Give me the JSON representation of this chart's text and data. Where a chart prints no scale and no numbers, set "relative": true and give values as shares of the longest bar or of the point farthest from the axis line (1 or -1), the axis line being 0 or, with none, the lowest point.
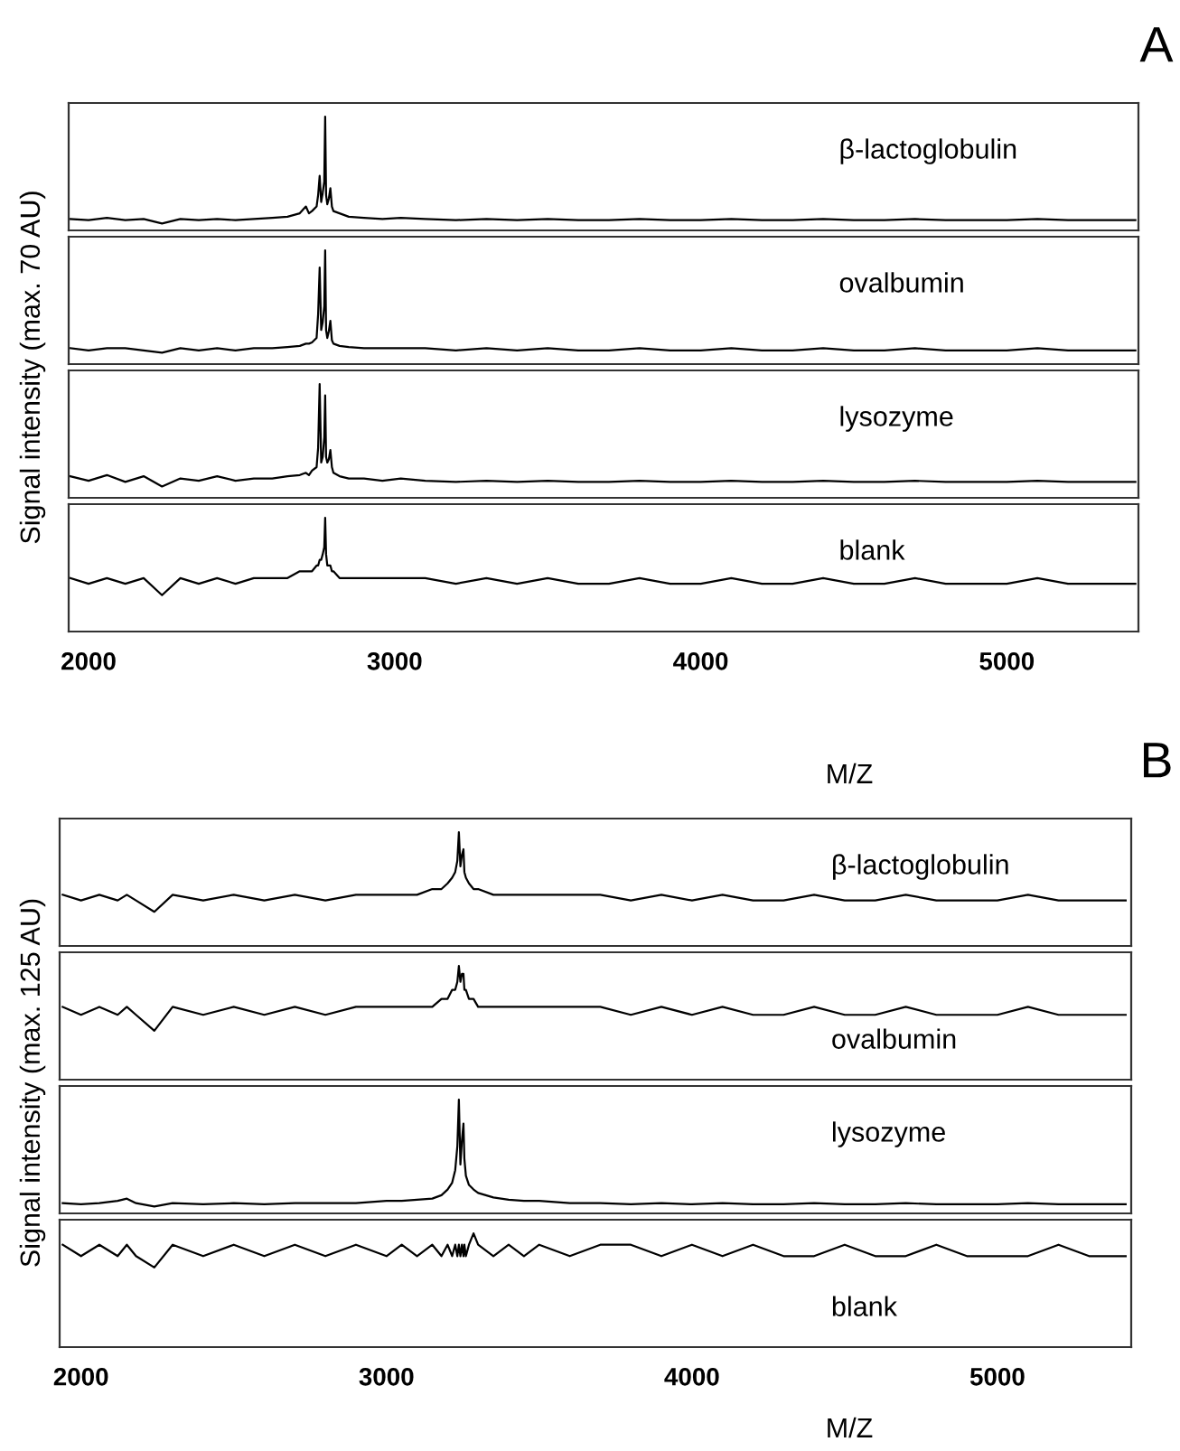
{
  "chart_data": [
    {
      "type": "line",
      "title": "A",
      "ylabel": "Signal intensity (max. 70 AU)",
      "relative": true,
      "xlim": [
        1935,
        5430
      ],
      "xticks": [
        2000,
        3000,
        4000,
        5000
      ],
      "tick_labels": false,
      "x": [
        1940,
        2000,
        2060,
        2120,
        2180,
        2240,
        2300,
        2360,
        2420,
        2480,
        2540,
        2600,
        2650,
        2690,
        2710,
        2720,
        2730,
        2745,
        2750,
        2755,
        2760,
        2765,
        2770,
        2773,
        2776,
        2780,
        2785,
        2790,
        2795,
        2800,
        2820,
        2850,
        2900,
        2960,
        3020,
        3100,
        3200,
        3300,
        3400,
        3500,
        3600,
        3700,
        3800,
        3900,
        4000,
        4100,
        4200,
        4300,
        4400,
        4500,
        4600,
        4700,
        4800,
        4900,
        5000,
        5100,
        5200,
        5300,
        5420
      ],
      "series": [
        {
          "name": "β-lactoglobulin",
          "color": "#000000",
          "values": [
            0.1,
            0.09,
            0.11,
            0.09,
            0.1,
            0.06,
            0.1,
            0.09,
            0.1,
            0.09,
            0.1,
            0.11,
            0.12,
            0.15,
            0.21,
            0.15,
            0.17,
            0.21,
            0.31,
            0.48,
            0.25,
            0.33,
            0.43,
            1,
            0.31,
            0.23,
            0.28,
            0.37,
            0.21,
            0.17,
            0.15,
            0.12,
            0.11,
            0.1,
            0.11,
            0.1,
            0.09,
            0.1,
            0.09,
            0.1,
            0.09,
            0.09,
            0.1,
            0.09,
            0.09,
            0.1,
            0.09,
            0.09,
            0.1,
            0.09,
            0.09,
            0.1,
            0.09,
            0.09,
            0.09,
            0.1,
            0.09,
            0.09,
            0.09
          ]
        }
      ]
    },
    {
      "type": "line",
      "relative": true,
      "xlim": [
        1935,
        5430
      ],
      "xticks": [
        2000,
        3000,
        4000,
        5000
      ],
      "tick_labels": false,
      "x": [
        1940,
        2000,
        2060,
        2120,
        2180,
        2240,
        2300,
        2360,
        2420,
        2480,
        2540,
        2600,
        2650,
        2690,
        2710,
        2720,
        2730,
        2745,
        2750,
        2755,
        2760,
        2765,
        2770,
        2773,
        2776,
        2780,
        2785,
        2790,
        2795,
        2800,
        2820,
        2850,
        2900,
        2960,
        3020,
        3100,
        3200,
        3300,
        3400,
        3500,
        3600,
        3700,
        3800,
        3900,
        4000,
        4100,
        4200,
        4300,
        4400,
        4500,
        4600,
        4700,
        4800,
        4900,
        5000,
        5100,
        5200,
        5300,
        5420
      ],
      "series": [
        {
          "name": "ovalbumin",
          "color": "#000000",
          "values": [
            0.14,
            0.12,
            0.14,
            0.14,
            0.12,
            0.1,
            0.14,
            0.12,
            0.14,
            0.12,
            0.14,
            0.14,
            0.15,
            0.16,
            0.18,
            0.18,
            0.19,
            0.23,
            0.44,
            0.85,
            0.3,
            0.37,
            0.51,
            1,
            0.3,
            0.23,
            0.29,
            0.38,
            0.21,
            0.18,
            0.16,
            0.15,
            0.14,
            0.14,
            0.14,
            0.14,
            0.12,
            0.14,
            0.12,
            0.14,
            0.12,
            0.12,
            0.14,
            0.12,
            0.12,
            0.14,
            0.12,
            0.12,
            0.14,
            0.12,
            0.12,
            0.14,
            0.12,
            0.12,
            0.12,
            0.14,
            0.12,
            0.12,
            0.12
          ]
        }
      ]
    },
    {
      "type": "line",
      "relative": true,
      "xlim": [
        1935,
        5430
      ],
      "xticks": [
        2000,
        3000,
        4000,
        5000
      ],
      "tick_labels": false,
      "x": [
        1940,
        2000,
        2060,
        2120,
        2180,
        2240,
        2300,
        2360,
        2420,
        2480,
        2540,
        2600,
        2650,
        2690,
        2710,
        2720,
        2730,
        2745,
        2750,
        2755,
        2760,
        2765,
        2770,
        2773,
        2776,
        2780,
        2785,
        2790,
        2795,
        2800,
        2820,
        2850,
        2900,
        2960,
        3020,
        3100,
        3200,
        3300,
        3400,
        3500,
        3600,
        3700,
        3800,
        3900,
        4000,
        4100,
        4200,
        4300,
        4400,
        4500,
        4600,
        4700,
        4800,
        4900,
        5000,
        5100,
        5200,
        5300,
        5420
      ],
      "series": [
        {
          "name": "lysozyme",
          "color": "#000000",
          "values": [
            0.19,
            0.15,
            0.2,
            0.14,
            0.19,
            0.1,
            0.17,
            0.15,
            0.19,
            0.15,
            0.17,
            0.17,
            0.19,
            0.2,
            0.22,
            0.2,
            0.24,
            0.27,
            0.44,
            1,
            0.31,
            0.36,
            0.53,
            0.9,
            0.36,
            0.31,
            0.34,
            0.42,
            0.27,
            0.22,
            0.19,
            0.17,
            0.17,
            0.15,
            0.17,
            0.15,
            0.14,
            0.15,
            0.14,
            0.15,
            0.14,
            0.14,
            0.15,
            0.14,
            0.14,
            0.15,
            0.14,
            0.14,
            0.15,
            0.14,
            0.14,
            0.15,
            0.14,
            0.14,
            0.14,
            0.15,
            0.14,
            0.14,
            0.14
          ]
        }
      ]
    },
    {
      "type": "line",
      "xlabel": "M/Z",
      "relative": true,
      "xlim": [
        1935,
        5430
      ],
      "xticks": [
        2000,
        3000,
        4000,
        5000
      ],
      "tick_labels": "x",
      "x": [
        1940,
        2000,
        2060,
        2120,
        2180,
        2240,
        2300,
        2360,
        2420,
        2480,
        2540,
        2600,
        2650,
        2690,
        2710,
        2720,
        2730,
        2745,
        2750,
        2755,
        2760,
        2765,
        2770,
        2773,
        2776,
        2780,
        2785,
        2790,
        2795,
        2800,
        2820,
        2850,
        2900,
        2960,
        3020,
        3100,
        3200,
        3300,
        3400,
        3500,
        3600,
        3700,
        3800,
        3900,
        4000,
        4100,
        4200,
        4300,
        4400,
        4500,
        4600,
        4700,
        4800,
        4900,
        5000,
        5100,
        5200,
        5300,
        5420
      ],
      "series": [
        {
          "name": "blank",
          "color": "#000000",
          "values": [
            0.47,
            0.42,
            0.47,
            0.42,
            0.47,
            0.32,
            0.47,
            0.42,
            0.47,
            0.42,
            0.47,
            0.47,
            0.47,
            0.53,
            0.53,
            0.53,
            0.53,
            0.58,
            0.58,
            0.63,
            0.63,
            0.68,
            0.74,
            1,
            0.68,
            0.58,
            0.58,
            0.58,
            0.53,
            0.53,
            0.47,
            0.47,
            0.47,
            0.47,
            0.47,
            0.47,
            0.42,
            0.47,
            0.42,
            0.47,
            0.42,
            0.42,
            0.47,
            0.42,
            0.42,
            0.47,
            0.42,
            0.42,
            0.47,
            0.42,
            0.42,
            0.47,
            0.42,
            0.42,
            0.42,
            0.47,
            0.42,
            0.42,
            0.42
          ]
        }
      ]
    },
    {
      "type": "line",
      "title": "B",
      "ylabel": "Signal intensity (max. 125 AU)",
      "relative": true,
      "xlim": [
        1930,
        5438
      ],
      "xticks": [
        2000,
        3000,
        4000,
        5000
      ],
      "tick_labels": false,
      "x": [
        1940,
        2000,
        2060,
        2120,
        2150,
        2180,
        2240,
        2300,
        2400,
        2500,
        2600,
        2700,
        2800,
        2900,
        3000,
        3050,
        3100,
        3150,
        3180,
        3200,
        3215,
        3225,
        3232,
        3237,
        3242,
        3247,
        3252,
        3255,
        3260,
        3270,
        3285,
        3300,
        3350,
        3400,
        3450,
        3500,
        3600,
        3700,
        3800,
        3900,
        4000,
        4100,
        4200,
        4300,
        4400,
        4500,
        4600,
        4700,
        4800,
        4900,
        5000,
        5100,
        5200,
        5300,
        5420
      ],
      "series": [
        {
          "name": "β-lactoglobulin",
          "color": "#000000",
          "values": [
            0.45,
            0.4,
            0.45,
            0.4,
            0.45,
            0.4,
            0.3,
            0.45,
            0.4,
            0.45,
            0.4,
            0.45,
            0.4,
            0.45,
            0.45,
            0.45,
            0.45,
            0.5,
            0.5,
            0.55,
            0.6,
            0.65,
            0.75,
            1,
            0.7,
            0.8,
            0.85,
            0.65,
            0.6,
            0.55,
            0.5,
            0.5,
            0.45,
            0.45,
            0.45,
            0.45,
            0.45,
            0.45,
            0.4,
            0.45,
            0.4,
            0.45,
            0.4,
            0.4,
            0.45,
            0.4,
            0.4,
            0.45,
            0.4,
            0.4,
            0.4,
            0.45,
            0.4,
            0.4,
            0.4
          ]
        }
      ]
    },
    {
      "type": "line",
      "relative": true,
      "xlim": [
        1930,
        5438
      ],
      "xticks": [
        2000,
        3000,
        4000,
        5000
      ],
      "tick_labels": false,
      "x": [
        1940,
        2000,
        2060,
        2120,
        2150,
        2180,
        2240,
        2300,
        2400,
        2500,
        2600,
        2700,
        2800,
        2900,
        3000,
        3050,
        3100,
        3150,
        3180,
        3200,
        3215,
        3225,
        3232,
        3237,
        3242,
        3247,
        3252,
        3255,
        3260,
        3270,
        3285,
        3300,
        3350,
        3400,
        3450,
        3500,
        3600,
        3700,
        3800,
        3900,
        4000,
        4100,
        4200,
        4300,
        4400,
        4500,
        4600,
        4700,
        4800,
        4900,
        5000,
        5100,
        5200,
        5300,
        5420
      ],
      "series": [
        {
          "name": "ovalbumin",
          "color": "#000000",
          "values": [
            0.64,
            0.57,
            0.64,
            0.57,
            0.64,
            0.57,
            0.43,
            0.64,
            0.57,
            0.64,
            0.57,
            0.64,
            0.57,
            0.64,
            0.64,
            0.64,
            0.64,
            0.64,
            0.71,
            0.71,
            0.79,
            0.79,
            0.86,
            1,
            0.86,
            0.93,
            0.93,
            0.79,
            0.79,
            0.71,
            0.71,
            0.64,
            0.64,
            0.64,
            0.64,
            0.64,
            0.64,
            0.64,
            0.57,
            0.64,
            0.57,
            0.64,
            0.57,
            0.57,
            0.64,
            0.57,
            0.57,
            0.64,
            0.57,
            0.57,
            0.57,
            0.64,
            0.57,
            0.57,
            0.57
          ]
        }
      ]
    },
    {
      "type": "line",
      "relative": true,
      "xlim": [
        1930,
        5438
      ],
      "xticks": [
        2000,
        3000,
        4000,
        5000
      ],
      "tick_labels": false,
      "x": [
        1940,
        2000,
        2060,
        2120,
        2150,
        2180,
        2240,
        2300,
        2400,
        2500,
        2600,
        2700,
        2800,
        2900,
        3000,
        3050,
        3100,
        3150,
        3180,
        3200,
        3215,
        3225,
        3232,
        3237,
        3242,
        3247,
        3252,
        3255,
        3260,
        3270,
        3285,
        3300,
        3350,
        3400,
        3450,
        3500,
        3600,
        3700,
        3800,
        3900,
        4000,
        4100,
        4200,
        4300,
        4400,
        4500,
        4600,
        4700,
        4800,
        4900,
        5000,
        5100,
        5200,
        5300,
        5420
      ],
      "series": [
        {
          "name": "lysozyme",
          "color": "#000000",
          "values": [
            0.09,
            0.08,
            0.09,
            0.11,
            0.13,
            0.09,
            0.06,
            0.09,
            0.08,
            0.09,
            0.08,
            0.09,
            0.09,
            0.09,
            0.11,
            0.11,
            0.12,
            0.13,
            0.16,
            0.21,
            0.27,
            0.38,
            0.59,
            1,
            0.43,
            0.64,
            0.79,
            0.48,
            0.33,
            0.25,
            0.21,
            0.18,
            0.14,
            0.12,
            0.11,
            0.11,
            0.09,
            0.09,
            0.08,
            0.09,
            0.08,
            0.09,
            0.08,
            0.08,
            0.09,
            0.08,
            0.08,
            0.09,
            0.08,
            0.08,
            0.08,
            0.09,
            0.08,
            0.08,
            0.08
          ]
        }
      ]
    },
    {
      "type": "line",
      "xlabel": "M/Z",
      "relative": true,
      "xlim": [
        1930,
        5438
      ],
      "xticks": [
        2000,
        3000,
        4000,
        5000
      ],
      "tick_labels": "x",
      "x": [
        1940,
        2000,
        2060,
        2120,
        2150,
        2180,
        2240,
        2300,
        2400,
        2500,
        2600,
        2700,
        2800,
        2900,
        3000,
        3050,
        3100,
        3150,
        3180,
        3200,
        3215,
        3225,
        3232,
        3237,
        3242,
        3247,
        3252,
        3255,
        3260,
        3270,
        3285,
        3300,
        3350,
        3400,
        3450,
        3500,
        3600,
        3700,
        3800,
        3900,
        4000,
        4100,
        4200,
        4300,
        4400,
        4500,
        4600,
        4700,
        4800,
        4900,
        5000,
        5100,
        5200,
        5300,
        5420
      ],
      "series": [
        {
          "name": "blank",
          "color": "#000000",
          "values": [
            0.9,
            0.8,
            0.9,
            0.8,
            0.9,
            0.8,
            0.7,
            0.9,
            0.8,
            0.9,
            0.8,
            0.9,
            0.8,
            0.9,
            0.8,
            0.9,
            0.8,
            0.9,
            0.8,
            0.9,
            0.8,
            0.9,
            0.8,
            0.9,
            0.8,
            0.9,
            0.8,
            0.9,
            0.8,
            0.9,
            1,
            0.9,
            0.8,
            0.9,
            0.8,
            0.9,
            0.8,
            0.9,
            0.9,
            0.8,
            0.9,
            0.8,
            0.9,
            0.8,
            0.8,
            0.9,
            0.8,
            0.8,
            0.9,
            0.8,
            0.8,
            0.8,
            0.9,
            0.8,
            0.8
          ]
        }
      ]
    }
  ]
}
